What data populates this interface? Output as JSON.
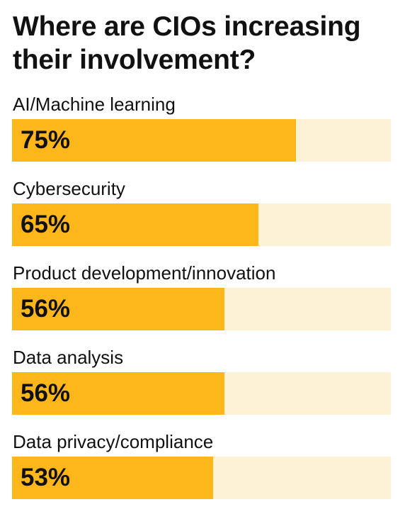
{
  "chart_data": {
    "type": "bar",
    "orientation": "horizontal",
    "title": "Where are CIOs increasing their involvement?",
    "categories": [
      "AI/Machine learning",
      "Cybersecurity",
      "Product development/innovation",
      "Data analysis",
      "Data privacy/compliance"
    ],
    "values": [
      75,
      65,
      56,
      56,
      53
    ],
    "value_labels": [
      "75%",
      "65%",
      "56%",
      "56%",
      "53%"
    ],
    "xlim": [
      0,
      100
    ],
    "grid": false,
    "legend": false
  },
  "colors": {
    "bar_fill": "#fdb71a",
    "bar_track": "#fef2d6",
    "text": "#111111",
    "background": "#ffffff"
  }
}
